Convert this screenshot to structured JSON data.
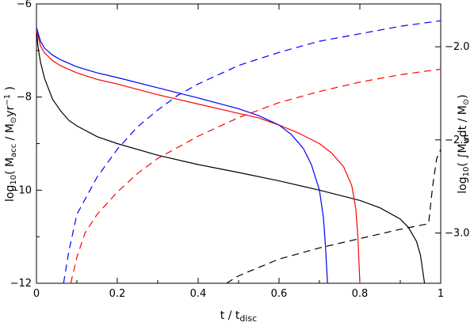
{
  "chart_data": {
    "type": "line",
    "title": "",
    "xlabel": "t / t_disc",
    "ylabel_left": "log10( Ṁacc / M⊙yr⁻¹ )",
    "ylabel_right": "log10( ∫Ṁw dt / M⊙ )",
    "xlim": [
      0,
      1
    ],
    "ylim_left": [
      -12,
      -6
    ],
    "ylim_right": [
      -3.27,
      -1.77
    ],
    "x_ticks": [
      0,
      0.2,
      0.4,
      0.6,
      0.8,
      1
    ],
    "x_tick_labels": [
      "0",
      "0.2",
      "0.4",
      "0.6",
      "0.8",
      "1"
    ],
    "y_left_ticks": [
      -12,
      -10,
      -8,
      -6
    ],
    "y_left_tick_labels": [
      "−12",
      "−10",
      "−8",
      "−6"
    ],
    "y_right_ticks": [
      -3.0,
      -2.5,
      -2.0
    ],
    "y_right_tick_labels": [
      "−3.0",
      "−2.5",
      "−2.0"
    ],
    "grid": false,
    "legend": "none",
    "series": [
      {
        "axis": "left",
        "color": "#000000",
        "style": "solid",
        "points": [
          [
            0,
            -6.55
          ],
          [
            0.003,
            -6.85
          ],
          [
            0.006,
            -7.05
          ],
          [
            0.01,
            -7.25
          ],
          [
            0.02,
            -7.6
          ],
          [
            0.04,
            -8.05
          ],
          [
            0.06,
            -8.3
          ],
          [
            0.08,
            -8.5
          ],
          [
            0.1,
            -8.62
          ],
          [
            0.15,
            -8.85
          ],
          [
            0.2,
            -9.0
          ],
          [
            0.3,
            -9.25
          ],
          [
            0.4,
            -9.45
          ],
          [
            0.5,
            -9.62
          ],
          [
            0.6,
            -9.8
          ],
          [
            0.7,
            -10.0
          ],
          [
            0.8,
            -10.22
          ],
          [
            0.85,
            -10.38
          ],
          [
            0.9,
            -10.62
          ],
          [
            0.92,
            -10.8
          ],
          [
            0.94,
            -11.1
          ],
          [
            0.95,
            -11.4
          ],
          [
            0.96,
            -12.0
          ]
        ]
      },
      {
        "axis": "left",
        "color": "#ff0000",
        "style": "solid",
        "points": [
          [
            0,
            -6.55
          ],
          [
            0.01,
            -6.9
          ],
          [
            0.02,
            -7.05
          ],
          [
            0.04,
            -7.22
          ],
          [
            0.06,
            -7.33
          ],
          [
            0.1,
            -7.48
          ],
          [
            0.15,
            -7.62
          ],
          [
            0.2,
            -7.72
          ],
          [
            0.3,
            -7.95
          ],
          [
            0.4,
            -8.15
          ],
          [
            0.5,
            -8.35
          ],
          [
            0.55,
            -8.45
          ],
          [
            0.6,
            -8.6
          ],
          [
            0.65,
            -8.78
          ],
          [
            0.7,
            -9.0
          ],
          [
            0.73,
            -9.2
          ],
          [
            0.76,
            -9.5
          ],
          [
            0.78,
            -9.9
          ],
          [
            0.79,
            -10.4
          ],
          [
            0.795,
            -11.0
          ],
          [
            0.8,
            -12.0
          ]
        ]
      },
      {
        "axis": "left",
        "color": "#0000ff",
        "style": "solid",
        "points": [
          [
            0,
            -6.5
          ],
          [
            0.01,
            -6.8
          ],
          [
            0.02,
            -6.95
          ],
          [
            0.04,
            -7.1
          ],
          [
            0.06,
            -7.2
          ],
          [
            0.1,
            -7.35
          ],
          [
            0.15,
            -7.48
          ],
          [
            0.2,
            -7.58
          ],
          [
            0.3,
            -7.8
          ],
          [
            0.4,
            -8.02
          ],
          [
            0.5,
            -8.25
          ],
          [
            0.55,
            -8.4
          ],
          [
            0.6,
            -8.6
          ],
          [
            0.63,
            -8.8
          ],
          [
            0.66,
            -9.1
          ],
          [
            0.68,
            -9.45
          ],
          [
            0.7,
            -10.0
          ],
          [
            0.71,
            -10.6
          ],
          [
            0.715,
            -11.2
          ],
          [
            0.72,
            -12.0
          ]
        ]
      },
      {
        "axis": "right",
        "color": "#0000ff",
        "style": "dashed",
        "points": [
          [
            0.067,
            -3.27
          ],
          [
            0.08,
            -3.1
          ],
          [
            0.1,
            -2.9
          ],
          [
            0.15,
            -2.7
          ],
          [
            0.2,
            -2.55
          ],
          [
            0.25,
            -2.43
          ],
          [
            0.3,
            -2.34
          ],
          [
            0.35,
            -2.26
          ],
          [
            0.4,
            -2.2
          ],
          [
            0.5,
            -2.1
          ],
          [
            0.6,
            -2.03
          ],
          [
            0.7,
            -1.97
          ],
          [
            0.8,
            -1.93
          ],
          [
            0.9,
            -1.89
          ],
          [
            1.0,
            -1.86
          ]
        ]
      },
      {
        "axis": "right",
        "color": "#ff0000",
        "style": "dashed",
        "points": [
          [
            0.085,
            -3.27
          ],
          [
            0.1,
            -3.13
          ],
          [
            0.12,
            -3.0
          ],
          [
            0.15,
            -2.9
          ],
          [
            0.2,
            -2.78
          ],
          [
            0.25,
            -2.68
          ],
          [
            0.3,
            -2.6
          ],
          [
            0.4,
            -2.48
          ],
          [
            0.5,
            -2.38
          ],
          [
            0.6,
            -2.3
          ],
          [
            0.7,
            -2.24
          ],
          [
            0.8,
            -2.19
          ],
          [
            0.9,
            -2.15
          ],
          [
            1.0,
            -2.12
          ]
        ]
      },
      {
        "axis": "right",
        "color": "#000000",
        "style": "dashed",
        "points": [
          [
            0.47,
            -3.27
          ],
          [
            0.5,
            -3.23
          ],
          [
            0.6,
            -3.14
          ],
          [
            0.7,
            -3.08
          ],
          [
            0.8,
            -3.03
          ],
          [
            0.9,
            -2.98
          ],
          [
            0.97,
            -2.95
          ],
          [
            0.98,
            -2.75
          ],
          [
            0.99,
            -2.6
          ],
          [
            1.0,
            -2.55
          ]
        ]
      }
    ]
  }
}
